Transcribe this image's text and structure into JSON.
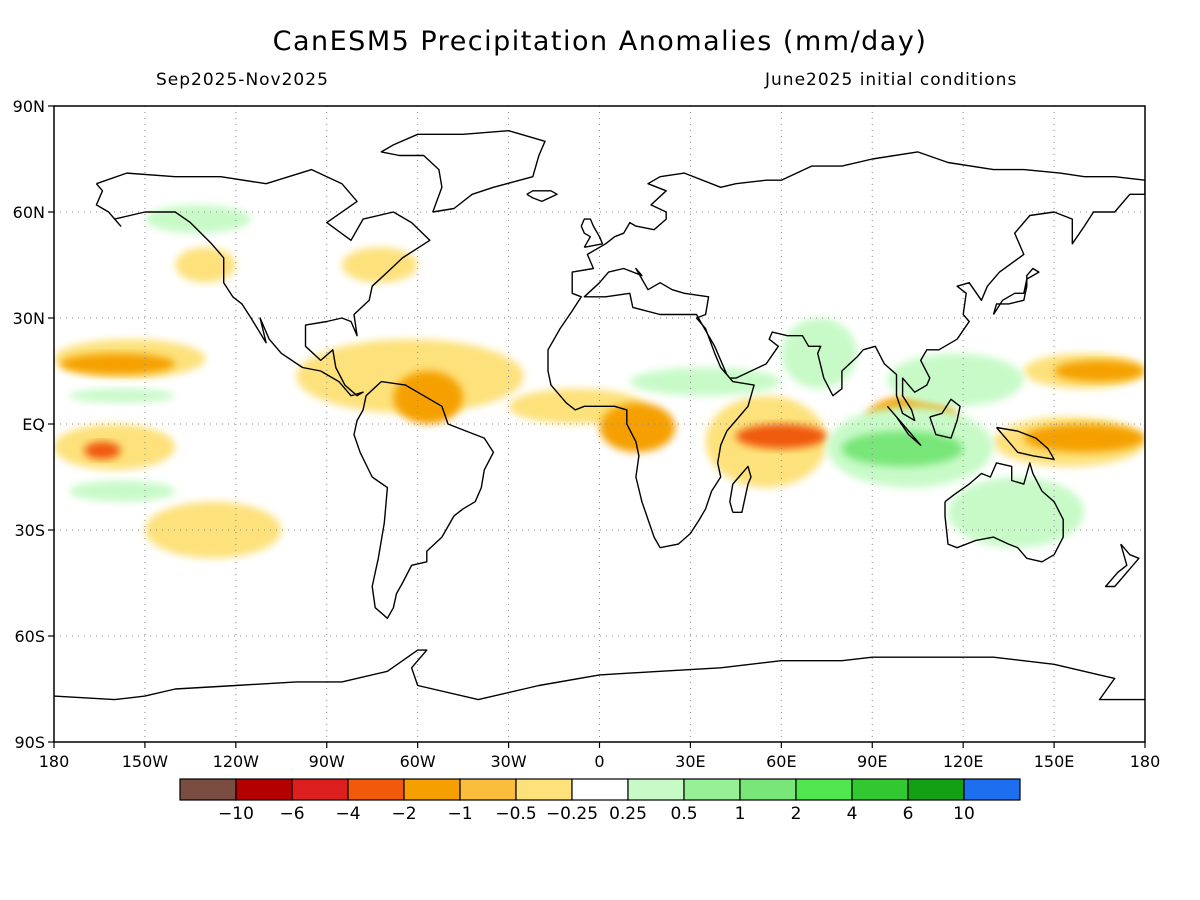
{
  "header": {
    "title": "CanESM5 Precipitation Anomalies (mm/day)",
    "period": "Sep2025-Nov2025",
    "init": "June2025 initial conditions"
  },
  "map": {
    "projection": "cylindrical equidistant",
    "lon_range": [
      -180,
      180
    ],
    "lat_range": [
      -90,
      90
    ],
    "grid": true,
    "lat_ticks": [
      {
        "value": 90,
        "label": "90N"
      },
      {
        "value": 60,
        "label": "60N"
      },
      {
        "value": 30,
        "label": "30N"
      },
      {
        "value": 0,
        "label": "EQ"
      },
      {
        "value": -30,
        "label": "30S"
      },
      {
        "value": -60,
        "label": "60S"
      },
      {
        "value": -90,
        "label": "90S"
      }
    ],
    "lon_ticks": [
      {
        "value": -180,
        "label": "180"
      },
      {
        "value": -150,
        "label": "150W"
      },
      {
        "value": -120,
        "label": "120W"
      },
      {
        "value": -90,
        "label": "90W"
      },
      {
        "value": -60,
        "label": "60W"
      },
      {
        "value": -30,
        "label": "30W"
      },
      {
        "value": 0,
        "label": "0"
      },
      {
        "value": 30,
        "label": "30E"
      },
      {
        "value": 60,
        "label": "60E"
      },
      {
        "value": 90,
        "label": "90E"
      },
      {
        "value": 120,
        "label": "120E"
      },
      {
        "value": 150,
        "label": "150E"
      },
      {
        "value": 180,
        "label": "180"
      }
    ]
  },
  "colorbar": {
    "colors": [
      "#7a4d43",
      "#b40000",
      "#dc1e1e",
      "#f05a0a",
      "#f5a000",
      "#fabe3c",
      "#fde17a",
      "#ffffff",
      "#c8fac8",
      "#96f096",
      "#78e678",
      "#50e650",
      "#32c832",
      "#14a014",
      "#1e6ef0"
    ],
    "labels": [
      "-10",
      "-6",
      "-4",
      "-2",
      "-1",
      "-0.5",
      "-0.25",
      "0.25",
      "0.5",
      "1",
      "2",
      "4",
      "6",
      "10"
    ]
  },
  "anomaly_regions": [
    {
      "level": "-0.25",
      "lon": [
        -180,
        -130
      ],
      "lat": [
        13,
        24
      ]
    },
    {
      "level": "-1",
      "lon": [
        -178,
        -140
      ],
      "lat": [
        14,
        20
      ]
    },
    {
      "level": "-0.25",
      "lon": [
        -180,
        -140
      ],
      "lat": [
        -13,
        0
      ]
    },
    {
      "level": "-2",
      "lon": [
        -170,
        -158
      ],
      "lat": [
        -10,
        -5
      ]
    },
    {
      "level": "-0.25",
      "lon": [
        -150,
        -105
      ],
      "lat": [
        -38,
        -22
      ]
    },
    {
      "level": "-0.25",
      "lon": [
        -140,
        -120
      ],
      "lat": [
        40,
        50
      ]
    },
    {
      "level": "-0.25",
      "lon": [
        -85,
        -60
      ],
      "lat": [
        40,
        50
      ]
    },
    {
      "level": "-0.25",
      "lon": [
        -100,
        -25
      ],
      "lat": [
        3,
        24
      ]
    },
    {
      "level": "-1",
      "lon": [
        -68,
        -45
      ],
      "lat": [
        0,
        15
      ]
    },
    {
      "level": "-0.25",
      "lon": [
        -30,
        15
      ],
      "lat": [
        0,
        10
      ]
    },
    {
      "level": "-1",
      "lon": [
        0,
        25
      ],
      "lat": [
        -8,
        6
      ]
    },
    {
      "level": "-0.25",
      "lon": [
        35,
        75
      ],
      "lat": [
        -18,
        8
      ]
    },
    {
      "level": "-2",
      "lon": [
        45,
        75
      ],
      "lat": [
        -7,
        0
      ]
    },
    {
      "level": "-1",
      "lon": [
        88,
        118
      ],
      "lat": [
        -5,
        8
      ]
    },
    {
      "level": "-0.25",
      "lon": [
        130,
        180
      ],
      "lat": [
        -12,
        2
      ]
    },
    {
      "level": "-1",
      "lon": [
        140,
        180
      ],
      "lat": [
        -8,
        0
      ]
    },
    {
      "level": "-0.25",
      "lon": [
        140,
        180
      ],
      "lat": [
        10,
        20
      ]
    },
    {
      "level": "-1",
      "lon": [
        150,
        180
      ],
      "lat": [
        12,
        18
      ]
    },
    {
      "level": "0.25",
      "lon": [
        75,
        130
      ],
      "lat": [
        -18,
        5
      ]
    },
    {
      "level": "1",
      "lon": [
        80,
        120
      ],
      "lat": [
        -12,
        -2
      ]
    },
    {
      "level": "0.25",
      "lon": [
        95,
        140
      ],
      "lat": [
        5,
        20
      ]
    },
    {
      "level": "0.25",
      "lon": [
        115,
        160
      ],
      "lat": [
        -35,
        -15
      ]
    },
    {
      "level": "0.25",
      "lon": [
        -175,
        -140
      ],
      "lat": [
        -22,
        -16
      ]
    },
    {
      "level": "0.25",
      "lon": [
        10,
        60
      ],
      "lat": [
        8,
        16
      ]
    },
    {
      "level": "0.25",
      "lon": [
        60,
        85
      ],
      "lat": [
        10,
        30
      ]
    },
    {
      "level": "0.25",
      "lon": [
        -150,
        -115
      ],
      "lat": [
        54,
        62
      ]
    },
    {
      "level": "0.25",
      "lon": [
        -175,
        -140
      ],
      "lat": [
        6,
        10
      ]
    }
  ]
}
